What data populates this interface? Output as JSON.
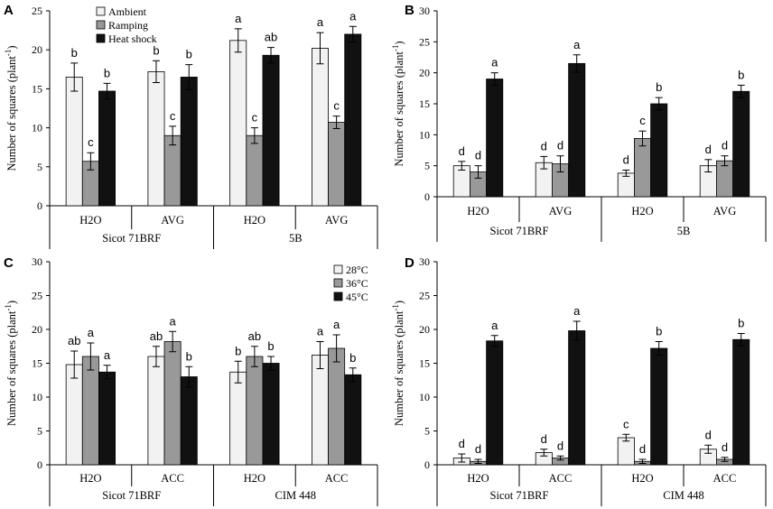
{
  "figure": {
    "colors": {
      "ambient": "#f2f2f2",
      "ramping": "#999999",
      "heat": "#111111",
      "axis": "#000000"
    }
  },
  "chart_data": [
    {
      "panel": "A",
      "type": "bar",
      "ylabel": "Number of squares (plant",
      "ylabel_sup": "-1",
      "ylabel_close": ")",
      "ylim": [
        0,
        25
      ],
      "yticks": [
        0,
        5,
        10,
        15,
        20,
        25
      ],
      "legend": [
        "Ambient",
        "Ramping",
        "Heat shock"
      ],
      "legend_position": "top-left",
      "categories": [
        "H2O",
        "AVG",
        "H2O",
        "AVG"
      ],
      "groups": [
        "Sicot 71BRF",
        "5B"
      ],
      "series": [
        {
          "name": "Ambient",
          "values": [
            16.5,
            17.2,
            21.2,
            20.2
          ],
          "errors": [
            1.8,
            1.4,
            1.5,
            2.0
          ],
          "labels": [
            "b",
            "b",
            "a",
            "a"
          ]
        },
        {
          "name": "Ramping",
          "values": [
            5.7,
            9.0,
            9.0,
            10.7
          ],
          "errors": [
            1.1,
            1.2,
            1.0,
            0.8
          ],
          "labels": [
            "c",
            "c",
            "c",
            "c"
          ]
        },
        {
          "name": "Heat shock",
          "values": [
            14.7,
            16.5,
            19.3,
            22.0
          ],
          "errors": [
            1.0,
            1.6,
            1.0,
            1.0
          ],
          "labels": [
            "b",
            "b",
            "ab",
            "a"
          ]
        }
      ]
    },
    {
      "panel": "B",
      "type": "bar",
      "ylabel": "Number of squares (plant",
      "ylabel_sup": "-1",
      "ylabel_close": ")",
      "ylim": [
        0,
        30
      ],
      "yticks": [
        0,
        5,
        10,
        15,
        20,
        25,
        30
      ],
      "legend": [],
      "categories": [
        "H2O",
        "AVG",
        "H2O",
        "AVG"
      ],
      "groups": [
        "Sicot 71BRF",
        "5B"
      ],
      "series": [
        {
          "name": "Ambient",
          "values": [
            5.0,
            5.5,
            3.8,
            5.0
          ],
          "errors": [
            0.7,
            1.0,
            0.5,
            1.0
          ],
          "labels": [
            "d",
            "d",
            "d",
            "d"
          ]
        },
        {
          "name": "Ramping",
          "values": [
            4.0,
            5.3,
            9.4,
            5.8
          ],
          "errors": [
            1.0,
            1.3,
            1.2,
            0.8
          ],
          "labels": [
            "d",
            "d",
            "c",
            "d"
          ]
        },
        {
          "name": "Heat shock",
          "values": [
            19.0,
            21.5,
            15.0,
            17.0
          ],
          "errors": [
            1.0,
            1.4,
            1.0,
            1.0
          ],
          "labels": [
            "a",
            "a",
            "b",
            "b"
          ]
        }
      ]
    },
    {
      "panel": "C",
      "type": "bar",
      "ylabel": "Number of squares (plant",
      "ylabel_sup": "-1",
      "ylabel_close": ")",
      "ylim": [
        0,
        30
      ],
      "yticks": [
        0,
        5,
        10,
        15,
        20,
        25,
        30
      ],
      "legend": [
        "28°C",
        "36°C",
        "45°C"
      ],
      "legend_position": "top-right",
      "categories": [
        "H2O",
        "ACC",
        "H2O",
        "ACC"
      ],
      "groups": [
        "Sicot 71BRF",
        "CIM 448"
      ],
      "series": [
        {
          "name": "28°C",
          "values": [
            14.8,
            16.0,
            13.7,
            16.2
          ],
          "errors": [
            2.0,
            1.5,
            1.6,
            2.0
          ],
          "labels": [
            "ab",
            "ab",
            "b",
            "a"
          ]
        },
        {
          "name": "36°C",
          "values": [
            16.0,
            18.2,
            16.0,
            17.2
          ],
          "errors": [
            2.0,
            1.5,
            1.5,
            2.0
          ],
          "labels": [
            "a",
            "a",
            "ab",
            "a"
          ]
        },
        {
          "name": "45°C",
          "values": [
            13.7,
            13.0,
            15.0,
            13.3
          ],
          "errors": [
            1.0,
            1.5,
            1.0,
            1.0
          ],
          "labels": [
            "a",
            "b",
            "b",
            "b"
          ]
        }
      ]
    },
    {
      "panel": "D",
      "type": "bar",
      "ylabel": "Number of squares (plant",
      "ylabel_sup": "-1",
      "ylabel_close": ")",
      "ylim": [
        0,
        30
      ],
      "yticks": [
        0,
        5,
        10,
        15,
        20,
        25,
        30
      ],
      "legend": [],
      "categories": [
        "H2O",
        "ACC",
        "H2O",
        "ACC"
      ],
      "groups": [
        "Sicot 71BRF",
        "CIM 448"
      ],
      "series": [
        {
          "name": "28°C",
          "values": [
            1.0,
            1.8,
            4.0,
            2.3
          ],
          "errors": [
            0.6,
            0.5,
            0.5,
            0.6
          ],
          "labels": [
            "d",
            "d",
            "c",
            "d"
          ]
        },
        {
          "name": "36°C",
          "values": [
            0.5,
            1.0,
            0.5,
            0.8
          ],
          "errors": [
            0.3,
            0.3,
            0.3,
            0.3
          ],
          "labels": [
            "d",
            "d",
            "d",
            "d"
          ]
        },
        {
          "name": "45°C",
          "values": [
            18.3,
            19.8,
            17.2,
            18.5
          ],
          "errors": [
            0.8,
            1.4,
            1.0,
            0.9
          ],
          "labels": [
            "a",
            "a",
            "b",
            "b"
          ]
        }
      ]
    }
  ]
}
